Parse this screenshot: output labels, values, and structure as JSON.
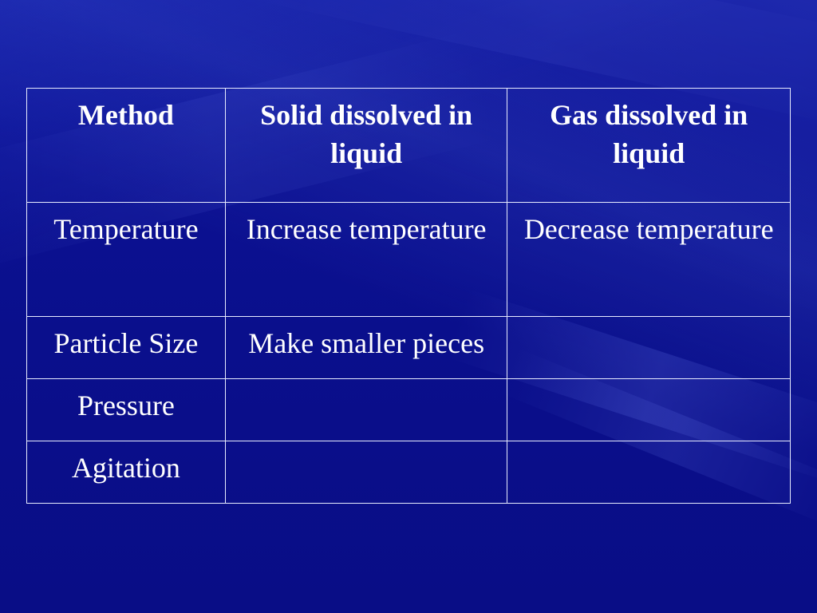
{
  "table": {
    "headers": [
      "Method",
      "Solid dissolved in liquid",
      "Gas dissolved in liquid"
    ],
    "rows": [
      [
        "Temperature",
        "Increase temperature",
        "Decrease temperature"
      ],
      [
        "Particle Size",
        "Make smaller pieces",
        ""
      ],
      [
        "Pressure",
        "",
        ""
      ],
      [
        "Agitation",
        "",
        ""
      ]
    ]
  },
  "colors": {
    "background": "#0b0f8f",
    "text": "#ffffff",
    "border": "#e8ecff"
  }
}
